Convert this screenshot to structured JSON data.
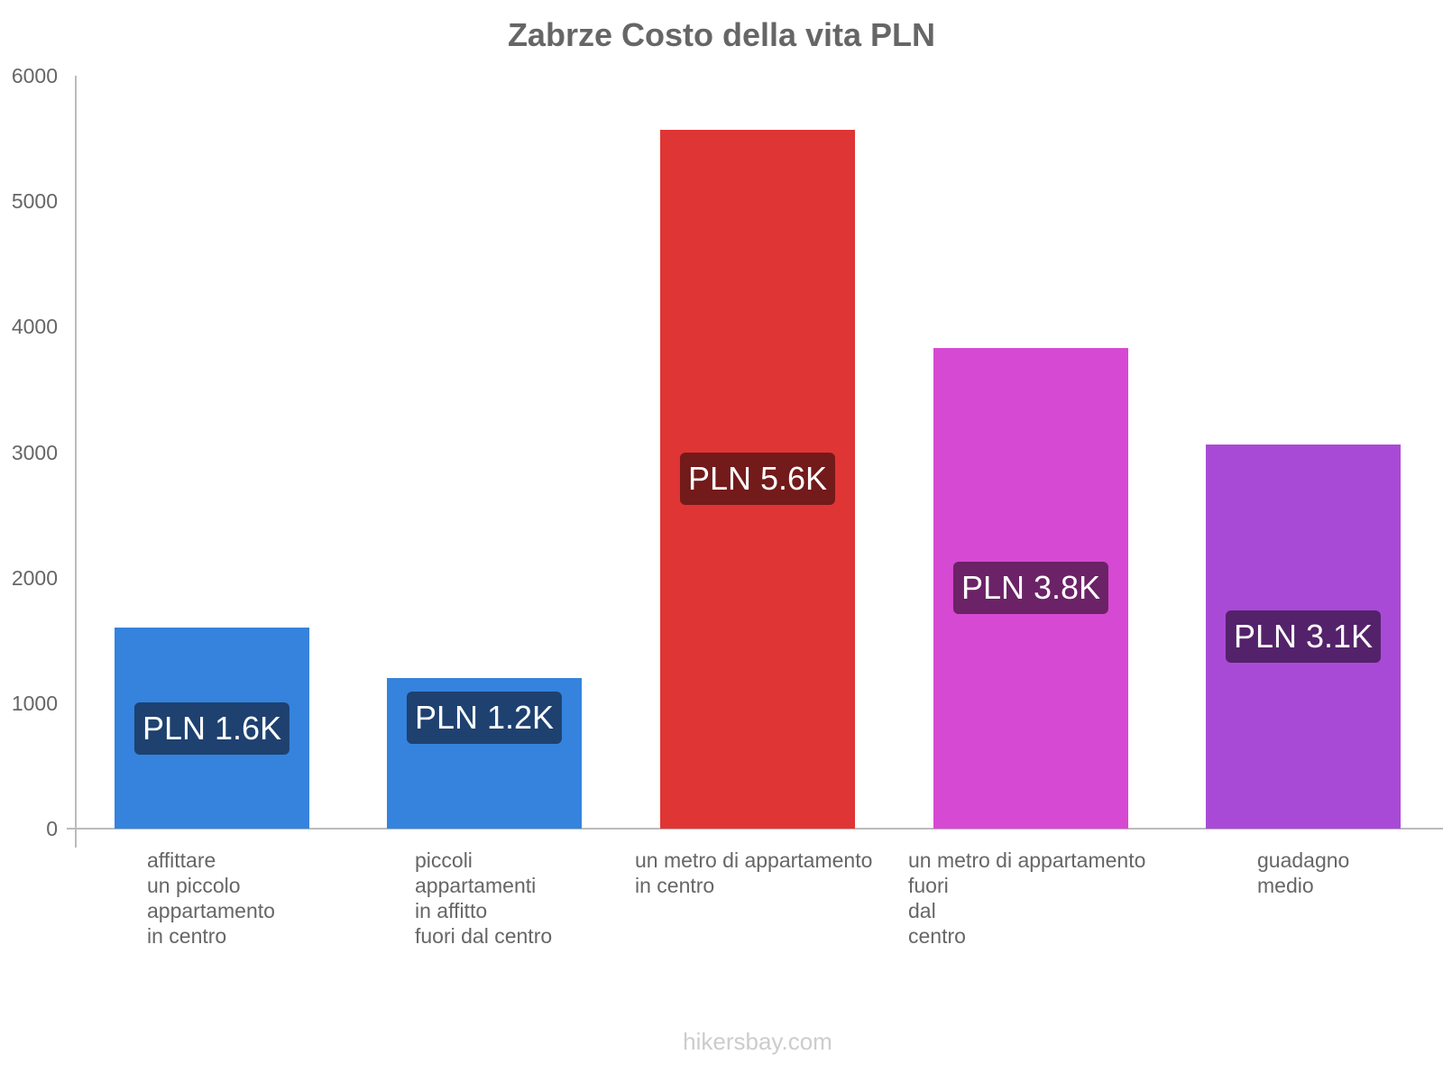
{
  "chart_data": {
    "type": "bar",
    "title": "Zabrze Costo della vita PLN",
    "xlabel": "",
    "ylabel": "",
    "ylim": [
      0,
      6000
    ],
    "yticks": [
      0,
      1000,
      2000,
      3000,
      4000,
      5000,
      6000
    ],
    "grid": false,
    "legend": null,
    "categories": [
      "affittare un piccolo appartamento in centro",
      "piccoli appartamenti in affitto fuori dal centro",
      "un metro di appartamento in centro",
      "un metro di appartamento fuori dal centro",
      "guadagno medio"
    ],
    "values": [
      1600,
      1200,
      5570,
      3830,
      3060
    ],
    "data_labels": [
      "PLN 1.6K",
      "PLN 1.2K",
      "PLN 5.6K",
      "PLN 3.8K",
      "PLN 3.1K"
    ],
    "colors": [
      "#3583dd",
      "#3583dd",
      "#e03535",
      "#d649d2",
      "#a94ad6"
    ],
    "label_bg_colors": [
      "#1e4170",
      "#1e4170",
      "#731a1a",
      "#6b2266",
      "#54226b"
    ]
  },
  "title": "Zabrze Costo della vita PLN",
  "y_axis": {
    "ticks": [
      "0",
      "1000",
      "2000",
      "3000",
      "4000",
      "5000",
      "6000"
    ]
  },
  "bars": [
    {
      "label_lines": "affittare\nun piccolo\nappartamento\nin centro",
      "value_label": "PLN 1.6K"
    },
    {
      "label_lines": "piccoli\nappartamenti\nin affitto\nfuori dal centro",
      "value_label": "PLN 1.2K"
    },
    {
      "label_lines": "un metro di appartamento\nin centro",
      "value_label": "PLN 5.6K"
    },
    {
      "label_lines": "un metro di appartamento\nfuori\ndal\ncentro",
      "value_label": "PLN 3.8K"
    },
    {
      "label_lines": "guadagno\nmedio",
      "value_label": "PLN 3.1K"
    }
  ],
  "footer": "hikersbay.com"
}
